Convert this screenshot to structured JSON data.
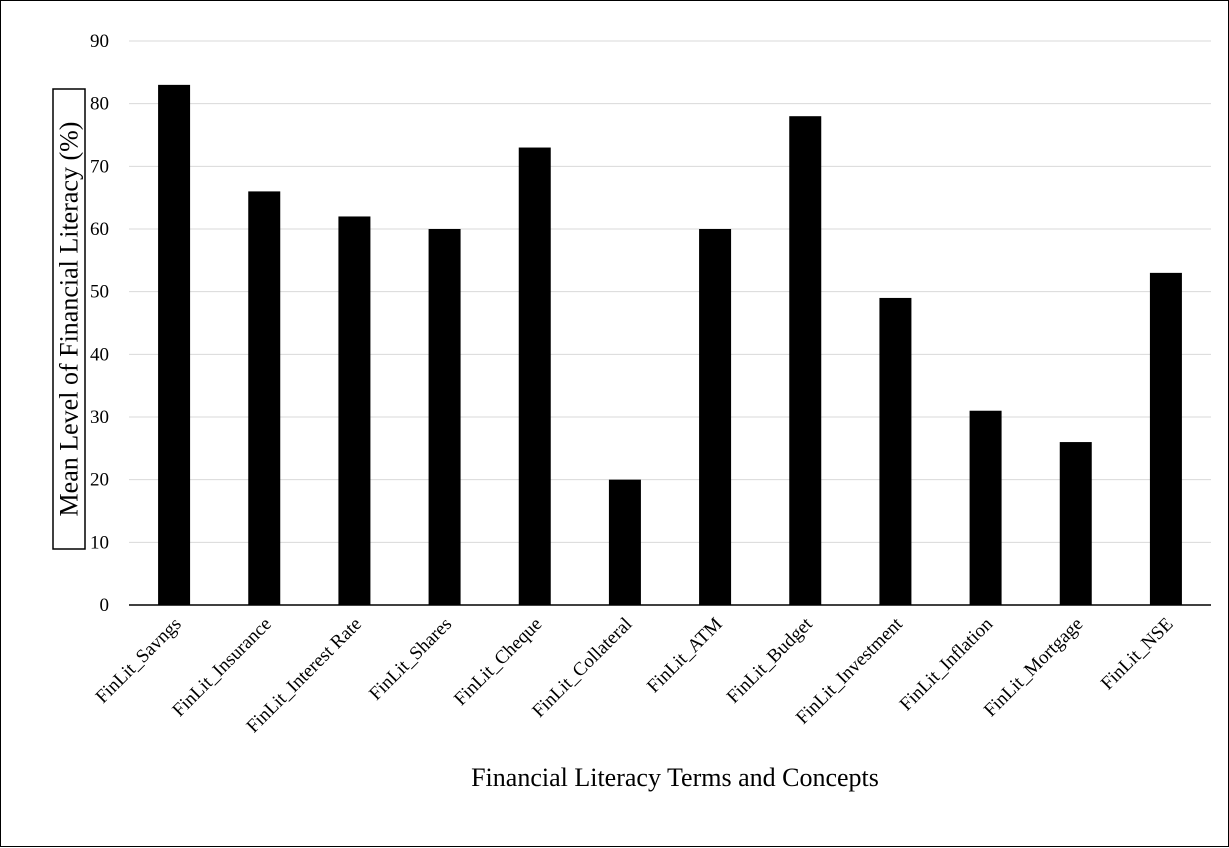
{
  "chart_data": {
    "type": "bar",
    "title": "",
    "xlabel": "Financial Literacy Terms and Concepts",
    "ylabel": "Mean Level of Financial Literacy (%)",
    "ylim": [
      0,
      90
    ],
    "yticks": [
      0,
      10,
      20,
      30,
      40,
      50,
      60,
      70,
      80,
      90
    ],
    "grid": true,
    "legend": "none",
    "bar_color": "#000000",
    "grid_color": "#d9d9d9",
    "categories": [
      "FinLit_Savngs",
      "FinLit_Insurance",
      "FinLit_Interest Rate",
      "FinLit_Shares",
      "FinLit_Cheque",
      "FinLit_Collateral",
      "FinLit_ATM",
      "FinLit_Budget",
      "FinLit_Investment",
      "FinLit_Inflation",
      "FinLit_Mortgage",
      "FinLit_NSE"
    ],
    "values": [
      83,
      66,
      62,
      60,
      73,
      20,
      60,
      78,
      49,
      31,
      26,
      53
    ]
  }
}
